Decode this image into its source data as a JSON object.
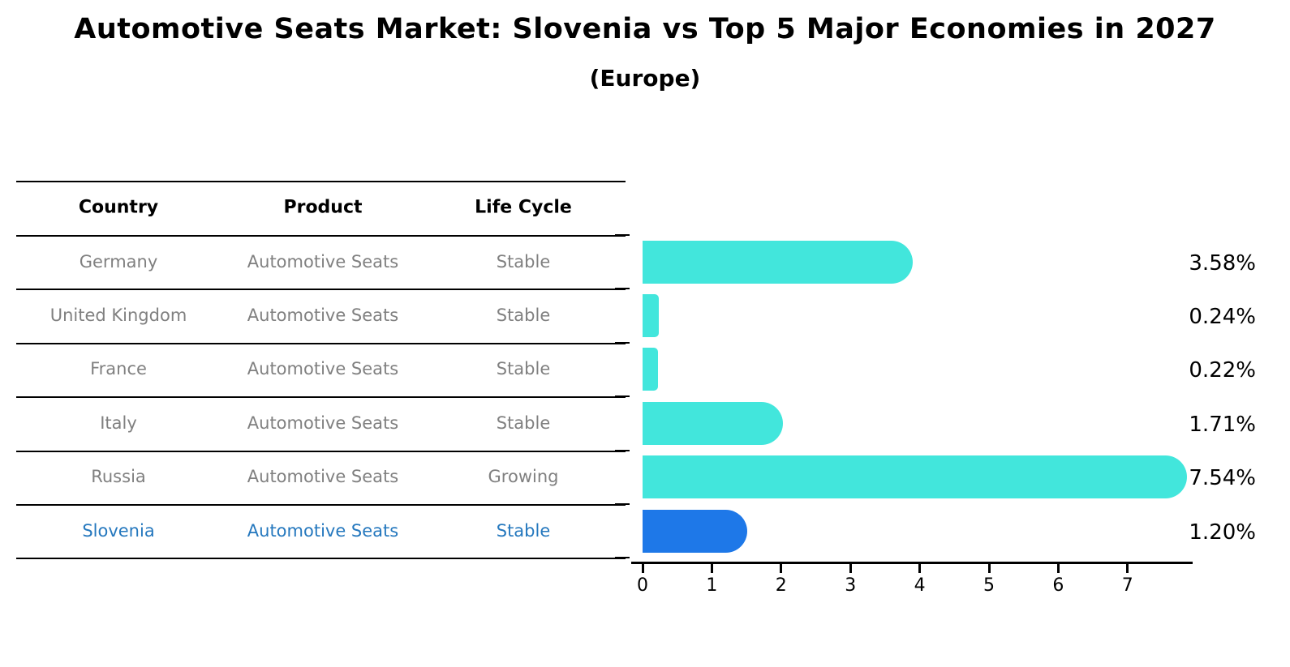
{
  "title": "Automotive Seats Market: Slovenia vs Top 5 Major Economies in 2027",
  "subtitle": "(Europe)",
  "table": {
    "headers": [
      "Country",
      "Product",
      "Life Cycle"
    ],
    "rows": [
      {
        "country": "Germany",
        "product": "Automotive Seats",
        "life_cycle": "Stable",
        "highlighted": false
      },
      {
        "country": "United Kingdom",
        "product": "Automotive Seats",
        "life_cycle": "Stable",
        "highlighted": false
      },
      {
        "country": "France",
        "product": "Automotive Seats",
        "life_cycle": "Stable",
        "highlighted": false
      },
      {
        "country": "Italy",
        "product": "Automotive Seats",
        "life_cycle": "Stable",
        "highlighted": false
      },
      {
        "country": "Russia",
        "product": "Automotive Seats",
        "life_cycle": "Growing",
        "highlighted": false
      },
      {
        "country": "Slovenia",
        "product": "Automotive Seats",
        "life_cycle": "Stable",
        "highlighted": true
      }
    ]
  },
  "chart_data": {
    "type": "bar",
    "orientation": "horizontal",
    "title": "Automotive Seats Market: Slovenia vs Top 5 Major Economies in 2027 (Europe)",
    "categories": [
      "Germany",
      "United Kingdom",
      "France",
      "Italy",
      "Russia",
      "Slovenia"
    ],
    "values": [
      3.58,
      0.24,
      0.22,
      1.71,
      7.54,
      1.2
    ],
    "value_labels": [
      "3.58%",
      "0.24%",
      "0.22%",
      "1.71%",
      "7.54%",
      "1.20%"
    ],
    "x_ticks": [
      0,
      1,
      2,
      3,
      4,
      5,
      6,
      7
    ],
    "xlim": [
      0,
      7.92
    ],
    "xlabel": "",
    "ylabel": "",
    "grid": false,
    "legend": null,
    "highlight_index": 5,
    "bar_color": "#42e6dc",
    "highlight_color": "#1e78e8",
    "highlight_text_color": "#2578be"
  }
}
